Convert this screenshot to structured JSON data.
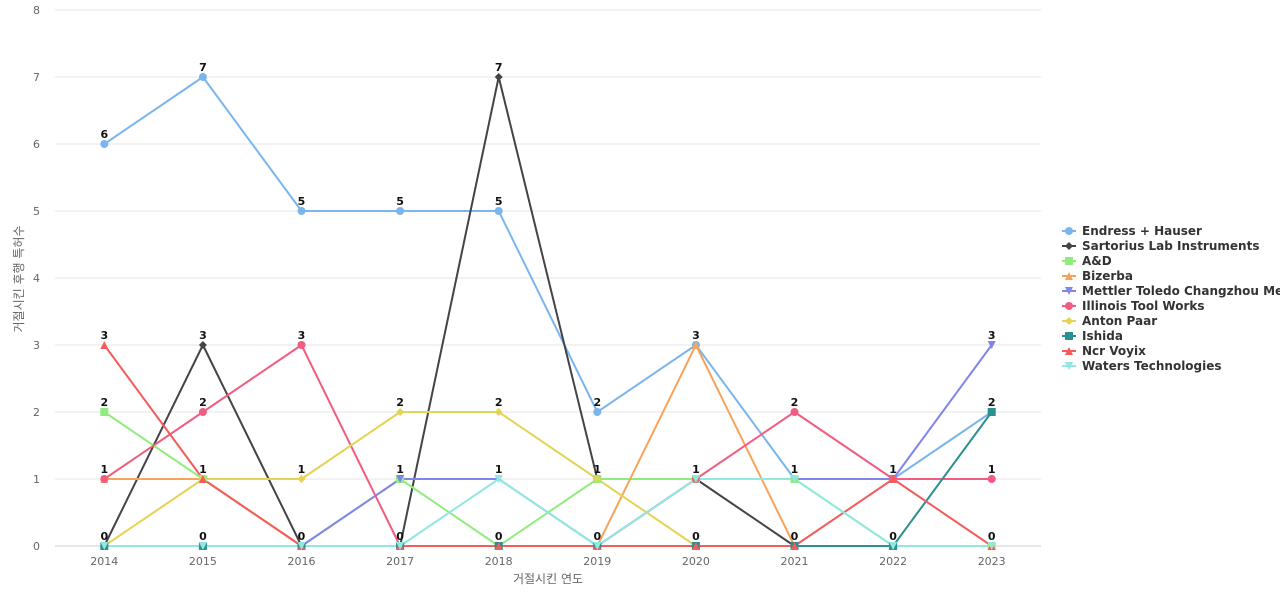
{
  "chart_data": {
    "type": "line",
    "title": "",
    "xlabel": "거절시킨 연도",
    "ylabel": "거절시킨 후행 특허수",
    "categories": [
      "2014",
      "2015",
      "2016",
      "2017",
      "2018",
      "2019",
      "2020",
      "2021",
      "2022",
      "2023"
    ],
    "ylim": [
      0,
      8
    ],
    "yticks": [
      0,
      1,
      2,
      3,
      4,
      5,
      6,
      7,
      8
    ],
    "grid": true,
    "legend_position": "right",
    "series": [
      {
        "name": "Endress + Hauser",
        "color": "#7cb5ec",
        "marker": "circle",
        "values": [
          6,
          7,
          5,
          5,
          5,
          2,
          3,
          1,
          1,
          2
        ]
      },
      {
        "name": "Sartorius Lab Instruments",
        "color": "#434348",
        "marker": "diamond",
        "values": [
          0,
          3,
          0,
          0,
          7,
          1,
          1,
          0,
          0,
          0
        ]
      },
      {
        "name": "A&D",
        "color": "#90ed7d",
        "marker": "square",
        "values": [
          2,
          1,
          0,
          1,
          0,
          1,
          1,
          1,
          0,
          0
        ]
      },
      {
        "name": "Bizerba",
        "color": "#f7a35c",
        "marker": "triangle",
        "values": [
          1,
          1,
          0,
          0,
          0,
          0,
          3,
          0,
          0,
          0
        ]
      },
      {
        "name": "Mettler Toledo Changzhou Me...",
        "color": "#8085e9",
        "marker": "triangle-down",
        "values": [
          0,
          0,
          0,
          1,
          1,
          0,
          1,
          1,
          1,
          3
        ]
      },
      {
        "name": "Illinois Tool Works",
        "color": "#f15c80",
        "marker": "circle",
        "values": [
          1,
          2,
          3,
          0,
          0,
          0,
          1,
          2,
          1,
          1
        ]
      },
      {
        "name": "Anton Paar",
        "color": "#e4d354",
        "marker": "diamond",
        "values": [
          0,
          1,
          1,
          2,
          2,
          1,
          0,
          0,
          0,
          0
        ]
      },
      {
        "name": "Ishida",
        "color": "#2b908f",
        "marker": "square",
        "values": [
          0,
          0,
          0,
          0,
          0,
          0,
          0,
          0,
          0,
          2
        ]
      },
      {
        "name": "Ncr Voyix",
        "color": "#f45b5b",
        "marker": "triangle",
        "values": [
          3,
          1,
          0,
          0,
          0,
          0,
          0,
          0,
          1,
          0
        ]
      },
      {
        "name": "Waters Technologies",
        "color": "#91e8e1",
        "marker": "triangle-down",
        "values": [
          0,
          0,
          0,
          0,
          1,
          0,
          1,
          1,
          0,
          0
        ]
      }
    ],
    "data_labels": [
      [
        "6",
        "7",
        "5",
        "5",
        "5",
        "2",
        "3",
        "1",
        "1",
        "2"
      ],
      [
        "0",
        "3",
        "0",
        "0",
        "7",
        "1",
        "1",
        "0",
        "0",
        "0"
      ],
      [
        "2",
        "1",
        "0",
        "1",
        "0",
        "1",
        "1",
        "1",
        "0",
        "0"
      ],
      [
        "1",
        "1",
        "0",
        "0",
        "0",
        "0",
        "3",
        "0",
        "0",
        "0"
      ],
      [
        "0",
        "0",
        "0",
        "1",
        "1",
        "0",
        "1",
        "1",
        "1",
        "3"
      ],
      [
        "1",
        "2",
        "3",
        "0",
        "0",
        "0",
        "1",
        "2",
        "1",
        "1"
      ],
      [
        "0",
        "1",
        "1",
        "2",
        "2",
        "1",
        "0",
        "0",
        "0",
        "0"
      ],
      [
        "0",
        "0",
        "0",
        "0",
        "0",
        "0",
        "0",
        "0",
        "0",
        "2"
      ],
      [
        "3",
        "1",
        "0",
        "0",
        "0",
        "0",
        "0",
        "0",
        "1",
        "0"
      ],
      [
        "0",
        "0",
        "0",
        "0",
        "1",
        "0",
        "1",
        "1",
        "0",
        "0"
      ]
    ],
    "column_labels": [
      [
        "6",
        "3",
        "2",
        "1",
        "0"
      ],
      [
        "7",
        "3",
        "2",
        "1",
        "0"
      ],
      [
        "5",
        "3",
        "1",
        "0"
      ],
      [
        "5",
        "2",
        "1",
        "0"
      ],
      [
        "7",
        "5",
        "2",
        "1",
        "0"
      ],
      [
        "2",
        "1",
        "0"
      ],
      [
        "3",
        "1",
        "0"
      ],
      [
        "2",
        "1",
        "0"
      ],
      [
        "1",
        "0"
      ],
      [
        "3",
        "2",
        "1",
        "0"
      ]
    ]
  }
}
